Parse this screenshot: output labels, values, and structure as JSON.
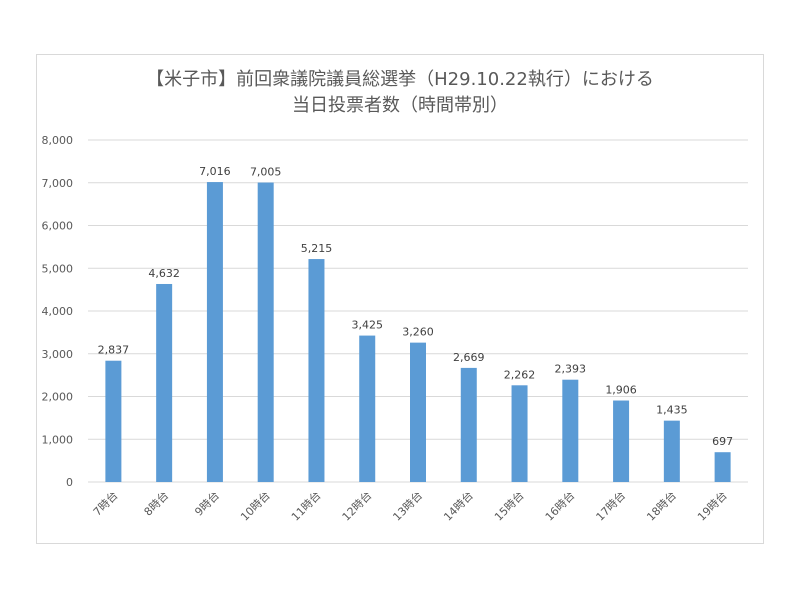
{
  "chart_data": {
    "type": "bar",
    "title_line1": "【米子市】前回衆議院議員総選挙（H29.10.22執行）における",
    "title_line2": "当日投票者数（時間帯別）",
    "categories": [
      "7時台",
      "8時台",
      "9時台",
      "10時台",
      "11時台",
      "12時台",
      "13時台",
      "14時台",
      "15時台",
      "16時台",
      "17時台",
      "18時台",
      "19時台"
    ],
    "values": [
      2837,
      4632,
      7016,
      7005,
      5215,
      3425,
      3260,
      2669,
      2262,
      2393,
      1906,
      1435,
      697
    ],
    "value_labels": [
      "2,837",
      "4,632",
      "7,016",
      "7,005",
      "5,215",
      "3,425",
      "3,260",
      "2,669",
      "2,262",
      "2,393",
      "1,906",
      "1,435",
      "697"
    ],
    "y_ticks": [
      0,
      1000,
      2000,
      3000,
      4000,
      5000,
      6000,
      7000,
      8000
    ],
    "y_tick_labels": [
      "0",
      "1,000",
      "2,000",
      "3,000",
      "4,000",
      "5,000",
      "6,000",
      "7,000",
      "8,000"
    ],
    "ylim": [
      0,
      8000
    ],
    "grid": true,
    "legend": "none",
    "bar_color": "#5b9bd5",
    "grid_color": "#d9d9d9"
  }
}
